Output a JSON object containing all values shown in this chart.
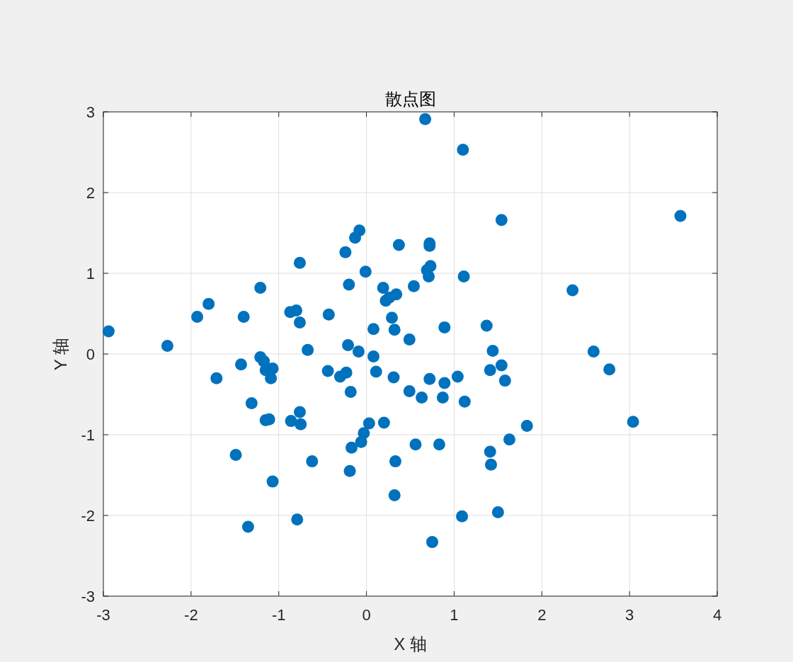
{
  "chart_data": {
    "type": "scatter",
    "title": "散点图",
    "xlabel": "X 轴",
    "ylabel": "Y 轴",
    "xlim": [
      -3,
      4
    ],
    "ylim": [
      -3,
      3
    ],
    "xticks": [
      -3,
      -2,
      -1,
      0,
      1,
      2,
      3,
      4
    ],
    "yticks": [
      -3,
      -2,
      -1,
      0,
      1,
      2,
      3
    ],
    "grid": true,
    "marker": "circle",
    "x": [
      0.67,
      1.1,
      3.58,
      0.72,
      0.72,
      1.54,
      -0.08,
      -0.13,
      0.37,
      -0.24,
      -0.76,
      0.73,
      0.69,
      0.71,
      1.11,
      -0.01,
      2.35,
      -1.21,
      -0.2,
      0.19,
      0.54,
      0.34,
      0.26,
      0.22,
      -1.8,
      -0.8,
      -0.87,
      -0.43,
      -1.93,
      -1.4,
      0.29,
      -0.76,
      0.89,
      1.37,
      0.08,
      0.32,
      -2.94,
      0.49,
      -2.27,
      -0.21,
      -0.67,
      -0.09,
      1.44,
      2.59,
      0.08,
      -1.21,
      -1.17,
      -1.43,
      1.54,
      -1.07,
      -1.15,
      -0.44,
      0.11,
      1.41,
      2.77,
      -0.23,
      -0.3,
      1.04,
      -1.09,
      -1.71,
      0.31,
      0.72,
      0.89,
      1.58,
      -0.18,
      0.49,
      0.63,
      0.87,
      1.12,
      -1.31,
      -0.76,
      -1.11,
      -1.15,
      -0.86,
      -0.75,
      0.03,
      0.2,
      1.83,
      3.04,
      -0.03,
      -0.06,
      1.63,
      0.56,
      0.83,
      -0.17,
      1.41,
      -1.49,
      0.33,
      -0.62,
      1.42,
      -0.19,
      -1.07,
      0.32,
      1.5,
      1.09,
      -0.79,
      -1.35,
      0.75
    ],
    "series": [
      {
        "color": "#0072bd",
        "values": [
          2.91,
          2.53,
          1.71,
          1.37,
          1.34,
          1.66,
          1.53,
          1.44,
          1.35,
          1.26,
          1.13,
          1.09,
          1.04,
          0.96,
          0.96,
          1.02,
          0.79,
          0.82,
          0.86,
          0.82,
          0.84,
          0.74,
          0.7,
          0.66,
          0.62,
          0.54,
          0.52,
          0.49,
          0.46,
          0.46,
          0.45,
          0.39,
          0.33,
          0.35,
          0.31,
          0.3,
          0.28,
          0.18,
          0.1,
          0.11,
          0.05,
          0.03,
          0.04,
          0.03,
          -0.03,
          -0.04,
          -0.09,
          -0.13,
          -0.14,
          -0.18,
          -0.2,
          -0.21,
          -0.22,
          -0.2,
          -0.19,
          -0.23,
          -0.28,
          -0.28,
          -0.3,
          -0.3,
          -0.29,
          -0.31,
          -0.36,
          -0.33,
          -0.47,
          -0.46,
          -0.54,
          -0.54,
          -0.59,
          -0.61,
          -0.72,
          -0.81,
          -0.82,
          -0.83,
          -0.87,
          -0.86,
          -0.85,
          -0.89,
          -0.84,
          -0.98,
          -1.09,
          -1.06,
          -1.12,
          -1.12,
          -1.16,
          -1.21,
          -1.25,
          -1.33,
          -1.33,
          -1.37,
          -1.45,
          -1.58,
          -1.75,
          -1.96,
          -2.01,
          -2.05,
          -2.14,
          -2.33
        ]
      }
    ]
  }
}
